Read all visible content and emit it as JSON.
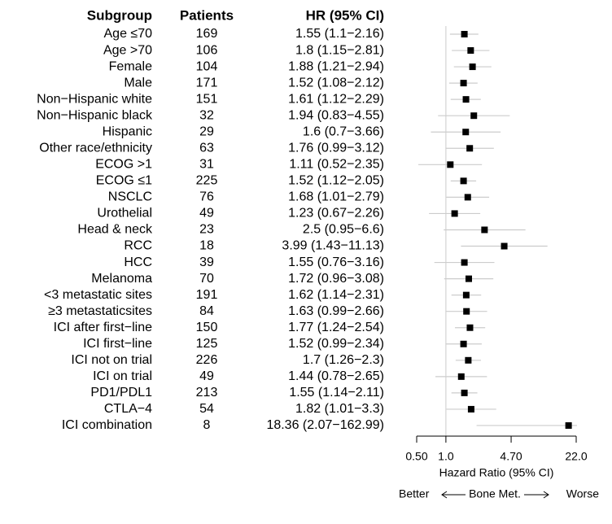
{
  "chart_data": {
    "type": "forest",
    "headers": [
      "Subgroup",
      "Patients",
      "HR (95% CI)"
    ],
    "categories": [
      "Age ≤70",
      "Age >70",
      "Female",
      "Male",
      "Non−Hispanic white",
      "Non−Hispanic black",
      "Hispanic",
      "Other race/ethnicity",
      "ECOG >1",
      "ECOG ≤1",
      "NSCLC",
      "Urothelial",
      "Head & neck",
      "RCC",
      "HCC",
      "Melanoma",
      "<3 metastatic sites",
      "≥3 metastaticsites",
      "ICI after first−line",
      "ICI first−line",
      "ICI not on trial",
      "ICI on trial",
      "PD1/PDL1",
      "CTLA−4",
      "ICI combination"
    ],
    "patients": [
      169,
      106,
      104,
      171,
      151,
      32,
      29,
      63,
      31,
      225,
      76,
      49,
      23,
      18,
      39,
      70,
      191,
      84,
      150,
      125,
      226,
      49,
      213,
      54,
      8
    ],
    "values": [
      1.55,
      1.8,
      1.88,
      1.52,
      1.61,
      1.94,
      1.6,
      1.76,
      1.11,
      1.52,
      1.68,
      1.23,
      2.5,
      3.99,
      1.55,
      1.72,
      1.62,
      1.63,
      1.77,
      1.52,
      1.7,
      1.44,
      1.55,
      1.82,
      18.36
    ],
    "lower": [
      1.1,
      1.15,
      1.21,
      1.08,
      1.12,
      0.83,
      0.7,
      0.99,
      0.52,
      1.12,
      1.01,
      0.67,
      0.95,
      1.43,
      0.76,
      0.96,
      1.14,
      0.99,
      1.24,
      0.99,
      1.26,
      0.78,
      1.14,
      1.01,
      2.07
    ],
    "upper": [
      2.16,
      2.81,
      2.94,
      2.12,
      2.29,
      4.55,
      3.66,
      3.12,
      2.35,
      2.05,
      2.79,
      2.26,
      6.6,
      11.13,
      3.16,
      3.08,
      2.31,
      2.66,
      2.54,
      2.34,
      2.3,
      2.65,
      2.11,
      3.3,
      162.99
    ],
    "value_labels": [
      "1.55 (1.1−2.16)",
      "1.8 (1.15−2.81)",
      "1.88 (1.21−2.94)",
      "1.52 (1.08−2.12)",
      "1.61 (1.12−2.29)",
      "1.94 (0.83−4.55)",
      "1.6 (0.7−3.66)",
      "1.76 (0.99−3.12)",
      "1.11 (0.52−2.35)",
      "1.52 (1.12−2.05)",
      "1.68 (1.01−2.79)",
      "1.23 (0.67−2.26)",
      "2.5 (0.95−6.6)",
      "3.99 (1.43−11.13)",
      "1.55 (0.76−3.16)",
      "1.72 (0.96−3.08)",
      "1.62 (1.14−2.31)",
      "1.63 (0.99−2.66)",
      "1.77 (1.24−2.54)",
      "1.52 (0.99−2.34)",
      "1.7 (1.26−2.3)",
      "1.44 (0.78−2.65)",
      "1.55 (1.14−2.11)",
      "1.82 (1.01−3.3)",
      "18.36 (2.07−162.99)"
    ],
    "xlabel": "Hazard Ratio (95% CI)",
    "xlim": [
      0.5,
      22
    ],
    "log_x": true,
    "xticks": [
      {
        "value": 0.5,
        "label": "0.50"
      },
      {
        "value": 1,
        "label": "1.0"
      },
      {
        "value": 4.7,
        "label": "4.70"
      },
      {
        "value": 22,
        "label": "22.0"
      }
    ],
    "reference_line": 1,
    "color": "#000000",
    "ci_color": "#cccccc",
    "footer": {
      "left": "Better",
      "center": "Bone Met.",
      "right": "Worse"
    }
  }
}
